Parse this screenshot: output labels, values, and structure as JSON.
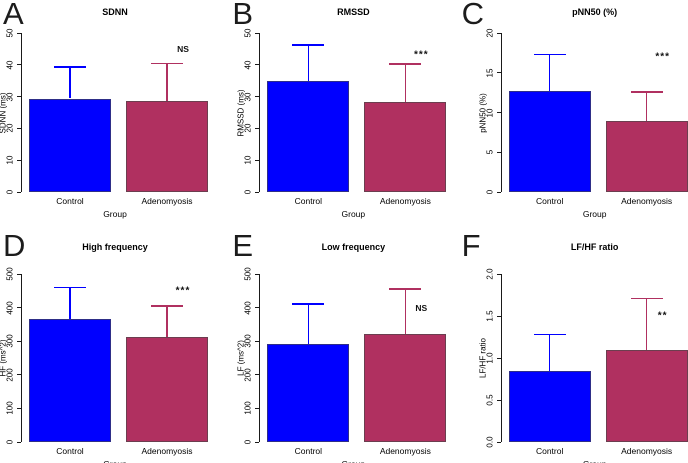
{
  "figure": {
    "background": "#ffffff",
    "group_colors": {
      "control": "#0000FF",
      "adenomyosis": "#B03060"
    },
    "axis_color": "#1a1a1a"
  },
  "chart_data": [
    {
      "panel": "A",
      "type": "bar",
      "title": "SDNN",
      "xlabel": "Group",
      "ylabel": "SDNN (ms)",
      "ylim": [
        0,
        50
      ],
      "yticks": [
        0,
        10,
        20,
        30,
        40,
        50
      ],
      "ytick_labels": [
        "0",
        "10",
        "20",
        "30",
        "40",
        "50"
      ],
      "categories": [
        "Control",
        "Adenomyosis"
      ],
      "series": [
        {
          "name": "mean",
          "values": [
            29.4,
            28.6
          ]
        }
      ],
      "errors_upper": [
        39.3,
        40.4
      ],
      "bar_colors": [
        "#0000FF",
        "#B03060"
      ],
      "grid": false,
      "legend": null,
      "significance": {
        "text": "NS",
        "over": "Adenomyosis",
        "y": 45
      }
    },
    {
      "panel": "B",
      "type": "bar",
      "title": "RMSSD",
      "xlabel": "Group",
      "ylabel": "RMSSD (ms)",
      "ylim": [
        0,
        50
      ],
      "yticks": [
        0,
        10,
        20,
        30,
        40,
        50
      ],
      "ytick_labels": [
        "0",
        "10",
        "20",
        "30",
        "40",
        "50"
      ],
      "categories": [
        "Control",
        "Adenomyosis"
      ],
      "series": [
        {
          "name": "mean",
          "values": [
            34.8,
            28.3
          ]
        }
      ],
      "errors_upper": [
        46.2,
        40.2
      ],
      "bar_colors": [
        "#0000FF",
        "#B03060"
      ],
      "grid": false,
      "legend": null,
      "significance": {
        "text": "***",
        "over": "Adenomyosis",
        "y": 43
      }
    },
    {
      "panel": "C",
      "type": "bar",
      "title": "pNN50 (%)",
      "xlabel": "Group",
      "ylabel": "pNN50 (%)",
      "ylim": [
        0,
        20
      ],
      "yticks": [
        0,
        5,
        10,
        15,
        20
      ],
      "ytick_labels": [
        "0",
        "5",
        "10",
        "15",
        "20"
      ],
      "categories": [
        "Control",
        "Adenomyosis"
      ],
      "series": [
        {
          "name": "mean",
          "values": [
            12.7,
            8.9
          ]
        }
      ],
      "errors_upper": [
        17.3,
        12.6
      ],
      "bar_colors": [
        "#0000FF",
        "#B03060"
      ],
      "grid": false,
      "legend": null,
      "significance": {
        "text": "***",
        "over": "Adenomyosis",
        "y": 17
      }
    },
    {
      "panel": "D",
      "type": "bar",
      "title": "High frequency",
      "xlabel": "Group",
      "ylabel": "HF (ms^2)",
      "ylim": [
        0,
        500
      ],
      "yticks": [
        0,
        100,
        200,
        300,
        400,
        500
      ],
      "ytick_labels": [
        "0",
        "100",
        "200",
        "300",
        "400",
        "500"
      ],
      "categories": [
        "Control",
        "Adenomyosis"
      ],
      "series": [
        {
          "name": "mean",
          "values": [
            365,
            313
          ]
        }
      ],
      "errors_upper": [
        460,
        405
      ],
      "bar_colors": [
        "#0000FF",
        "#B03060"
      ],
      "grid": false,
      "legend": null,
      "significance": {
        "text": "***",
        "over": "Adenomyosis",
        "y": 450
      }
    },
    {
      "panel": "E",
      "type": "bar",
      "title": "Low frequency",
      "xlabel": "Group",
      "ylabel": "LF (ms^2)",
      "ylim": [
        0,
        500
      ],
      "yticks": [
        0,
        100,
        200,
        300,
        400,
        500
      ],
      "ytick_labels": [
        "0",
        "100",
        "200",
        "300",
        "400",
        "500"
      ],
      "categories": [
        "Control",
        "Adenomyosis"
      ],
      "series": [
        {
          "name": "mean",
          "values": [
            293,
            320
          ]
        }
      ],
      "errors_upper": [
        410,
        455
      ],
      "bar_colors": [
        "#0000FF",
        "#B03060"
      ],
      "grid": false,
      "legend": null,
      "significance": {
        "text": "NS",
        "over": "Adenomyosis",
        "y": 400
      }
    },
    {
      "panel": "F",
      "type": "bar",
      "title": "LF/HF ratio",
      "xlabel": "Group",
      "ylabel": "LF/HF ratio",
      "ylim": [
        0,
        2
      ],
      "yticks": [
        0,
        0.5,
        1,
        1.5,
        2
      ],
      "ytick_labels": [
        "0.0",
        "0.5",
        "1.0",
        "1.5",
        "2.0"
      ],
      "categories": [
        "Control",
        "Adenomyosis"
      ],
      "series": [
        {
          "name": "mean",
          "values": [
            0.85,
            1.1
          ]
        }
      ],
      "errors_upper": [
        1.28,
        1.71
      ],
      "bar_colors": [
        "#0000FF",
        "#B03060"
      ],
      "grid": false,
      "legend": null,
      "significance": {
        "text": "**",
        "over": "Adenomyosis",
        "y": 1.5
      }
    }
  ]
}
